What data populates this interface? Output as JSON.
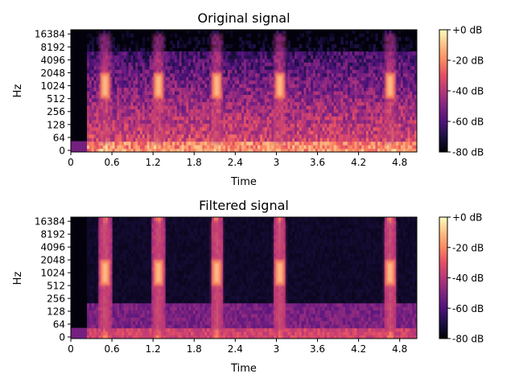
{
  "chart_data": [
    {
      "type": "heatmap",
      "title": "Original signal",
      "xlabel": "Time",
      "ylabel": "Hz",
      "x_ticks": [
        0,
        0.6,
        1.2,
        1.8,
        2.4,
        3.0,
        3.6,
        4.2,
        4.8
      ],
      "x_tick_labels": [
        "0",
        "0.6",
        "1.2",
        "1.8",
        "2.4",
        "3",
        "3.6",
        "4.2",
        "4.8"
      ],
      "xlim": [
        0,
        5.05
      ],
      "y_scale": "log",
      "y_ticks": [
        0,
        64,
        128,
        256,
        512,
        1024,
        2048,
        4096,
        8192,
        16384
      ],
      "y_tick_labels": [
        "0",
        "64",
        "128",
        "256",
        "512",
        "1024",
        "2048",
        "4096",
        "8192",
        "16384"
      ],
      "ylim": [
        0,
        22050
      ],
      "colorbar": {
        "ticks": [
          0,
          -20,
          -40,
          -60,
          -80
        ],
        "tick_labels": [
          "+0 dB",
          "-20 dB",
          "-40 dB",
          "-60 dB",
          "-80 dB"
        ],
        "range": [
          -80,
          0
        ],
        "colormap": "magma"
      },
      "events_time_s": [
        0.5,
        1.28,
        2.13,
        3.05,
        4.66
      ],
      "event_band_hz": [
        512,
        2048
      ]
    },
    {
      "type": "heatmap",
      "title": "Filtered signal",
      "xlabel": "Time",
      "ylabel": "Hz",
      "x_ticks": [
        0,
        0.6,
        1.2,
        1.8,
        2.4,
        3.0,
        3.6,
        4.2,
        4.8
      ],
      "x_tick_labels": [
        "0",
        "0.6",
        "1.2",
        "1.8",
        "2.4",
        "3",
        "3.6",
        "4.2",
        "4.8"
      ],
      "xlim": [
        0,
        5.05
      ],
      "y_scale": "log",
      "y_ticks": [
        0,
        64,
        128,
        256,
        512,
        1024,
        2048,
        4096,
        8192,
        16384
      ],
      "y_tick_labels": [
        "0",
        "64",
        "128",
        "256",
        "512",
        "1024",
        "2048",
        "4096",
        "8192",
        "16384"
      ],
      "ylim": [
        0,
        22050
      ],
      "colorbar": {
        "ticks": [
          0,
          -20,
          -40,
          -60,
          -80
        ],
        "tick_labels": [
          "+0 dB",
          "-20 dB",
          "-40 dB",
          "-60 dB",
          "-80 dB"
        ],
        "range": [
          -80,
          0
        ],
        "colormap": "magma"
      },
      "events_time_s": [
        0.5,
        1.28,
        2.13,
        3.05,
        4.66
      ],
      "event_band_hz": [
        512,
        2048
      ]
    }
  ]
}
